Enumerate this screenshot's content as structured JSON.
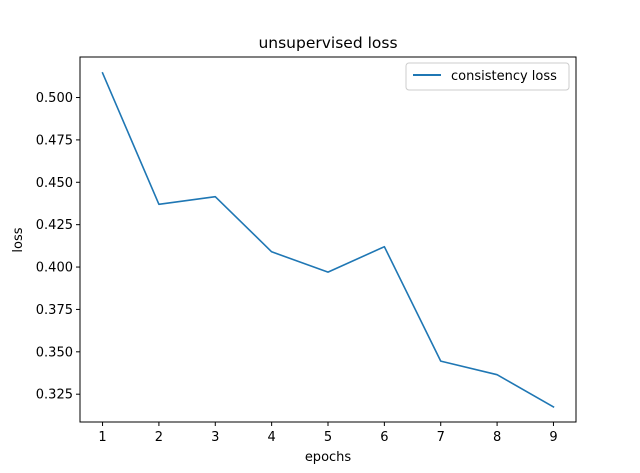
{
  "chart_data": {
    "type": "line",
    "title": "unsupervised loss",
    "xlabel": "epochs",
    "ylabel": "loss",
    "x": [
      1,
      2,
      3,
      4,
      5,
      6,
      7,
      8,
      9
    ],
    "xticks": [
      "1",
      "2",
      "3",
      "4",
      "5",
      "6",
      "7",
      "8",
      "9"
    ],
    "yticks": [
      "0.325",
      "0.350",
      "0.375",
      "0.400",
      "0.425",
      "0.450",
      "0.475",
      "0.500"
    ],
    "ytick_values": [
      0.325,
      0.35,
      0.375,
      0.4,
      0.425,
      0.45,
      0.475,
      0.5
    ],
    "xlim": [
      0.6,
      9.4
    ],
    "ylim": [
      0.3086,
      0.5239
    ],
    "grid": false,
    "legend_position": "upper-right",
    "series": [
      {
        "name": "consistency loss",
        "color": "#1f77b4",
        "values": [
          0.5145,
          0.437,
          0.4415,
          0.409,
          0.397,
          0.412,
          0.3445,
          0.3365,
          0.3175
        ]
      }
    ]
  }
}
